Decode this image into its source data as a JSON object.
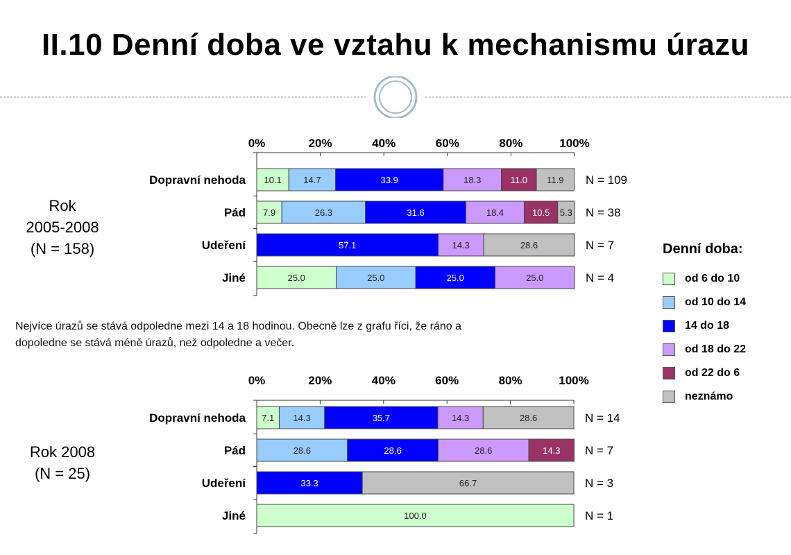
{
  "title": "II.10 Denní doba ve vztahu k mechanismu úrazu",
  "note": [
    "Nejvíce úrazů se stává odpoledne mezi 14 a 18 hodinou. Obecně lze z grafu říci, že ráno a",
    "dopoledne se stává méně úrazů, než odpoledne a večer."
  ],
  "groups": [
    {
      "line1": "Rok",
      "line2": "2005-2008",
      "line3": "(N = 158)"
    },
    {
      "line1": "Rok 2008",
      "line2": "(N = 25)"
    }
  ],
  "legend": {
    "title": "Denní doba:",
    "items": [
      {
        "label": "od 6 do 10",
        "color": "#ccffcc"
      },
      {
        "label": "od 10 do 14",
        "color": "#99ccff"
      },
      {
        "label": "14 do 18",
        "color": "#0000ff"
      },
      {
        "label": "od 18 do 22",
        "color": "#cc99ff"
      },
      {
        "label": "od 22 do 6",
        "color": "#993366"
      },
      {
        "label": "neznámo",
        "color": "#c0c0c0"
      }
    ]
  },
  "chart_data": [
    {
      "type": "bar",
      "stacked": true,
      "orientation": "horizontal",
      "categories": [
        "Dopravní nehoda",
        "Pád",
        "Udeření",
        "Jiné"
      ],
      "n_labels": [
        "N = 109",
        "N = 38",
        "N = 7",
        "N = 4"
      ],
      "xticks": [
        "0%",
        "20%",
        "40%",
        "60%",
        "80%",
        "100%"
      ],
      "xlim": [
        0,
        100
      ],
      "series": [
        {
          "name": "od 6 do 10",
          "values": [
            10.1,
            7.9,
            0,
            25.0
          ]
        },
        {
          "name": "od 10 do 14",
          "values": [
            14.7,
            26.3,
            0,
            25.0
          ]
        },
        {
          "name": "14 do 18",
          "values": [
            33.9,
            31.6,
            57.1,
            25.0
          ]
        },
        {
          "name": "od 18 do 22",
          "values": [
            18.3,
            18.4,
            14.3,
            25.0
          ]
        },
        {
          "name": "od 22 do 6",
          "values": [
            11.0,
            10.5,
            0,
            0
          ]
        },
        {
          "name": "neznámo",
          "values": [
            11.9,
            5.3,
            28.6,
            0
          ]
        }
      ]
    },
    {
      "type": "bar",
      "stacked": true,
      "orientation": "horizontal",
      "categories": [
        "Dopravní nehoda",
        "Pád",
        "Udeření",
        "Jiné"
      ],
      "n_labels": [
        "N = 14",
        "N = 7",
        "N = 3",
        "N = 1"
      ],
      "xticks": [
        "0%",
        "20%",
        "40%",
        "60%",
        "80%",
        "100%"
      ],
      "xlim": [
        0,
        100
      ],
      "series": [
        {
          "name": "od 6 do 10",
          "values": [
            7.1,
            0,
            0,
            100.0
          ]
        },
        {
          "name": "od 10 do 14",
          "values": [
            14.3,
            28.6,
            0,
            0
          ]
        },
        {
          "name": "14 do 18",
          "values": [
            35.7,
            28.6,
            33.3,
            0
          ]
        },
        {
          "name": "od 18 do 22",
          "values": [
            14.3,
            28.6,
            0,
            0
          ]
        },
        {
          "name": "od 22 do 6",
          "values": [
            0,
            14.3,
            0,
            0
          ]
        },
        {
          "name": "neznámo",
          "values": [
            28.6,
            0,
            66.7,
            0
          ]
        }
      ]
    }
  ]
}
